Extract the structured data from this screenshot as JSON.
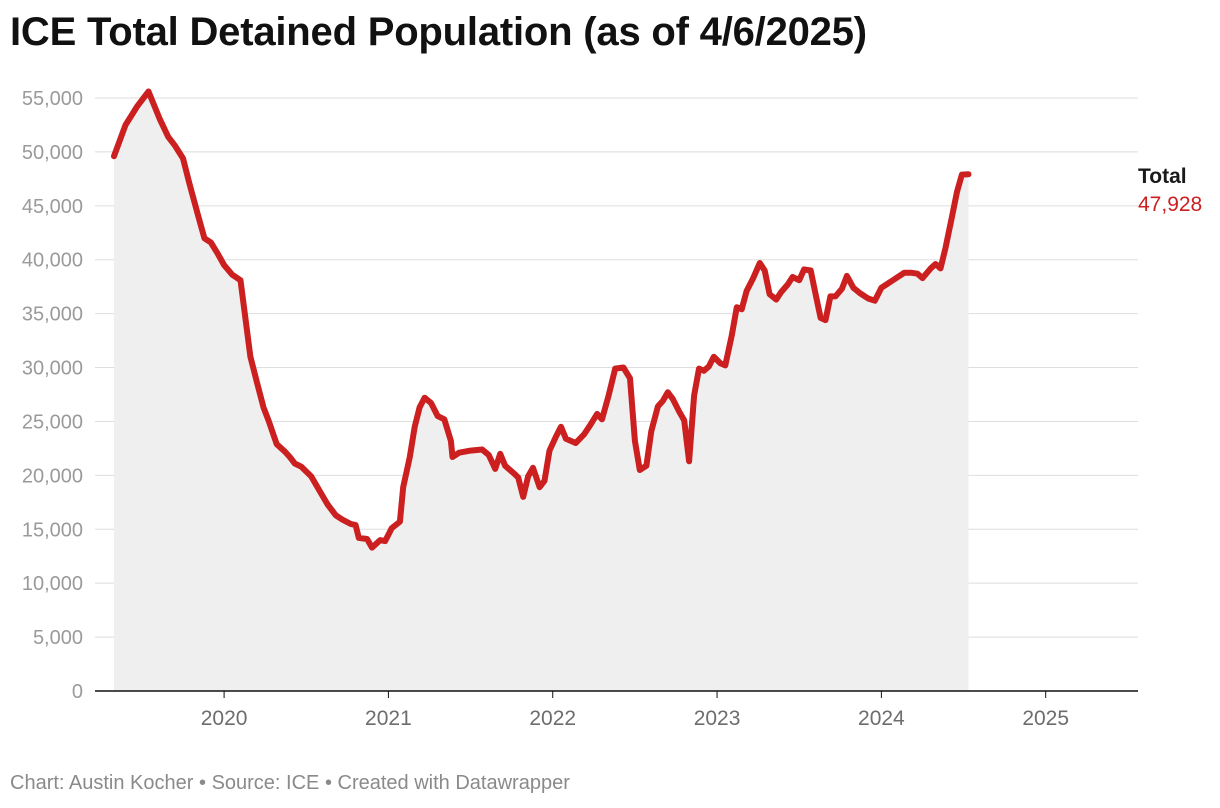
{
  "title": "ICE Total Detained Population (as of 4/6/2025)",
  "footer": {
    "credit": "Chart: Austin Kocher",
    "source": "Source: ICE",
    "tool": "Created with Datawrapper"
  },
  "colors": {
    "line": "#cc1f20",
    "area": "#efefef",
    "grid": "#dedede",
    "axis": "#111111"
  },
  "chart_data": {
    "type": "area",
    "title": "ICE Total Detained Population (as of 4/6/2025)",
    "xlabel": "",
    "ylabel": "",
    "ylim": [
      0,
      55000
    ],
    "xlim": [
      2019.33,
      2025.44
    ],
    "grid": true,
    "legend": "end-of-line label",
    "y_ticks": [
      {
        "value": 0,
        "label": "0"
      },
      {
        "value": 5000,
        "label": "5,000"
      },
      {
        "value": 10000,
        "label": "10,000"
      },
      {
        "value": 15000,
        "label": "15,000"
      },
      {
        "value": 20000,
        "label": "20,000"
      },
      {
        "value": 25000,
        "label": "25,000"
      },
      {
        "value": 30000,
        "label": "30,000"
      },
      {
        "value": 35000,
        "label": "35,000"
      },
      {
        "value": 40000,
        "label": "40,000"
      },
      {
        "value": 45000,
        "label": "45,000"
      },
      {
        "value": 50000,
        "label": "50,000"
      },
      {
        "value": 55000,
        "label": "55,000"
      }
    ],
    "x_ticks": [
      {
        "value": 2020,
        "label": "2020"
      },
      {
        "value": 2021,
        "label": "2021"
      },
      {
        "value": 2022,
        "label": "2022"
      },
      {
        "value": 2023,
        "label": "2023"
      },
      {
        "value": 2024,
        "label": "2024"
      },
      {
        "value": 2025,
        "label": "2025"
      }
    ],
    "series": [
      {
        "name": "Total",
        "end_value_label": "47,928",
        "points": [
          [
            2019.33,
            49600
          ],
          [
            2019.4,
            52500
          ],
          [
            2019.47,
            54200
          ],
          [
            2019.54,
            55600
          ],
          [
            2019.61,
            53000
          ],
          [
            2019.66,
            51400
          ],
          [
            2019.7,
            50600
          ],
          [
            2019.75,
            49400
          ],
          [
            2019.79,
            47000
          ],
          [
            2019.84,
            44200
          ],
          [
            2019.88,
            42000
          ],
          [
            2019.92,
            41600
          ],
          [
            2019.96,
            40600
          ],
          [
            2020.0,
            39500
          ],
          [
            2020.05,
            38600
          ],
          [
            2020.1,
            38100
          ],
          [
            2020.13,
            34500
          ],
          [
            2020.16,
            31000
          ],
          [
            2020.2,
            28600
          ],
          [
            2020.24,
            26300
          ],
          [
            2020.27,
            25100
          ],
          [
            2020.32,
            22900
          ],
          [
            2020.37,
            22200
          ],
          [
            2020.4,
            21700
          ],
          [
            2020.43,
            21100
          ],
          [
            2020.47,
            20800
          ],
          [
            2020.53,
            19900
          ],
          [
            2020.58,
            18600
          ],
          [
            2020.63,
            17300
          ],
          [
            2020.68,
            16300
          ],
          [
            2020.72,
            15900
          ],
          [
            2020.77,
            15500
          ],
          [
            2020.8,
            15400
          ],
          [
            2020.82,
            14200
          ],
          [
            2020.87,
            14100
          ],
          [
            2020.9,
            13300
          ],
          [
            2020.95,
            14000
          ],
          [
            2020.98,
            13900
          ],
          [
            2021.02,
            15100
          ],
          [
            2021.07,
            15700
          ],
          [
            2021.09,
            18900
          ],
          [
            2021.13,
            21700
          ],
          [
            2021.16,
            24500
          ],
          [
            2021.19,
            26300
          ],
          [
            2021.22,
            27200
          ],
          [
            2021.26,
            26700
          ],
          [
            2021.3,
            25500
          ],
          [
            2021.34,
            25200
          ],
          [
            2021.38,
            23200
          ],
          [
            2021.39,
            21700
          ],
          [
            2021.43,
            22100
          ],
          [
            2021.5,
            22300
          ],
          [
            2021.57,
            22400
          ],
          [
            2021.61,
            21900
          ],
          [
            2021.65,
            20600
          ],
          [
            2021.68,
            22000
          ],
          [
            2021.71,
            20900
          ],
          [
            2021.77,
            20100
          ],
          [
            2021.79,
            19800
          ],
          [
            2021.82,
            18000
          ],
          [
            2021.85,
            19900
          ],
          [
            2021.88,
            20700
          ],
          [
            2021.92,
            18900
          ],
          [
            2021.95,
            19500
          ],
          [
            2021.98,
            22300
          ],
          [
            2022.02,
            23600
          ],
          [
            2022.05,
            24500
          ],
          [
            2022.08,
            23400
          ],
          [
            2022.14,
            23000
          ],
          [
            2022.19,
            23800
          ],
          [
            2022.23,
            24700
          ],
          [
            2022.27,
            25700
          ],
          [
            2022.3,
            25200
          ],
          [
            2022.34,
            27400
          ],
          [
            2022.38,
            29900
          ],
          [
            2022.43,
            30000
          ],
          [
            2022.47,
            29000
          ],
          [
            2022.5,
            23200
          ],
          [
            2022.53,
            20500
          ],
          [
            2022.57,
            20900
          ],
          [
            2022.6,
            24100
          ],
          [
            2022.64,
            26400
          ],
          [
            2022.67,
            26900
          ],
          [
            2022.7,
            27700
          ],
          [
            2022.73,
            27100
          ],
          [
            2022.77,
            25900
          ],
          [
            2022.8,
            25100
          ],
          [
            2022.83,
            21300
          ],
          [
            2022.86,
            27400
          ],
          [
            2022.89,
            29900
          ],
          [
            2022.92,
            29700
          ],
          [
            2022.95,
            30100
          ],
          [
            2022.98,
            31000
          ],
          [
            2023.02,
            30400
          ],
          [
            2023.05,
            30200
          ],
          [
            2023.09,
            33000
          ],
          [
            2023.12,
            35600
          ],
          [
            2023.15,
            35400
          ],
          [
            2023.18,
            37100
          ],
          [
            2023.22,
            38300
          ],
          [
            2023.26,
            39700
          ],
          [
            2023.29,
            39000
          ],
          [
            2023.32,
            36800
          ],
          [
            2023.36,
            36300
          ],
          [
            2023.39,
            37000
          ],
          [
            2023.43,
            37700
          ],
          [
            2023.46,
            38400
          ],
          [
            2023.5,
            38100
          ],
          [
            2023.53,
            39100
          ],
          [
            2023.57,
            39000
          ],
          [
            2023.6,
            36800
          ],
          [
            2023.63,
            34600
          ],
          [
            2023.66,
            34400
          ],
          [
            2023.69,
            36600
          ],
          [
            2023.72,
            36600
          ],
          [
            2023.76,
            37300
          ],
          [
            2023.79,
            38500
          ],
          [
            2023.83,
            37400
          ],
          [
            2023.87,
            36900
          ],
          [
            2023.92,
            36400
          ],
          [
            2023.96,
            36200
          ],
          [
            2024.0,
            37400
          ],
          [
            2024.05,
            37900
          ],
          [
            2024.1,
            38400
          ],
          [
            2024.14,
            38800
          ],
          [
            2024.18,
            38800
          ],
          [
            2024.22,
            38700
          ],
          [
            2024.25,
            38300
          ],
          [
            2024.3,
            39200
          ],
          [
            2024.33,
            39600
          ],
          [
            2024.36,
            39200
          ],
          [
            2024.39,
            41100
          ],
          [
            2024.43,
            44000
          ],
          [
            2024.46,
            46300
          ],
          [
            2024.49,
            47900
          ],
          [
            2024.53,
            47928
          ]
        ]
      }
    ]
  }
}
